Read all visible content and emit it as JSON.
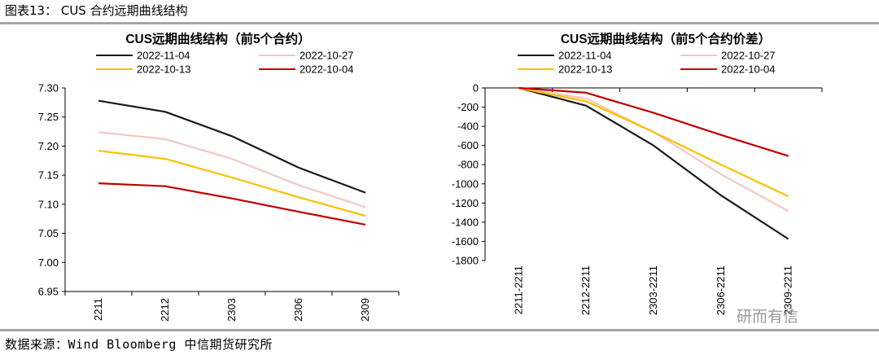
{
  "figure_title": "图表13： CUS 合约远期曲线结构",
  "source": "数据来源：Wind  Bloomberg  中信期货研究所",
  "watermark": "研而有信",
  "chart_data": [
    {
      "type": "line",
      "title": "CUS远期曲线结构（前5个合约）",
      "categories": [
        "2211",
        "2212",
        "2303",
        "2306",
        "2309"
      ],
      "ylim": [
        6.95,
        7.3
      ],
      "yticks": [
        "7.30",
        "7.25",
        "7.20",
        "7.15",
        "7.10",
        "7.05",
        "7.00",
        "6.95"
      ],
      "grid": false,
      "legend_position": "top",
      "series": [
        {
          "name": "2022-11-04",
          "color": "#1a1a1a",
          "values": [
            7.278,
            7.259,
            7.217,
            7.163,
            7.12
          ]
        },
        {
          "name": "2022-10-27",
          "color": "#f4c7c3",
          "values": [
            7.224,
            7.212,
            7.178,
            7.133,
            7.095
          ]
        },
        {
          "name": "2022-10-13",
          "color": "#ffc000",
          "values": [
            7.192,
            7.178,
            7.146,
            7.112,
            7.08
          ]
        },
        {
          "name": "2022-10-04",
          "color": "#c00000",
          "values": [
            7.136,
            7.131,
            7.11,
            7.087,
            7.065
          ]
        }
      ]
    },
    {
      "type": "line",
      "title": "CUS远期曲线结构（前5个合约价差）",
      "categories": [
        "2211-2211",
        "2212-2211",
        "2303-2211",
        "2306-2211",
        "2309-2211"
      ],
      "ylim": [
        -1800,
        0
      ],
      "yticks": [
        "0",
        "-200",
        "-400",
        "-600",
        "-800",
        "-1000",
        "-1200",
        "-1400",
        "-1600",
        "-1800"
      ],
      "grid": false,
      "legend_position": "top",
      "series": [
        {
          "name": "2022-11-04",
          "color": "#1a1a1a",
          "values": [
            0,
            -185,
            -600,
            -1120,
            -1575
          ]
        },
        {
          "name": "2022-10-27",
          "color": "#f4c7c3",
          "values": [
            0,
            -110,
            -460,
            -900,
            -1285
          ]
        },
        {
          "name": "2022-10-13",
          "color": "#ffc000",
          "values": [
            0,
            -140,
            -460,
            -800,
            -1130
          ]
        },
        {
          "name": "2022-10-04",
          "color": "#c00000",
          "values": [
            0,
            -50,
            -260,
            -490,
            -710
          ]
        }
      ]
    }
  ]
}
